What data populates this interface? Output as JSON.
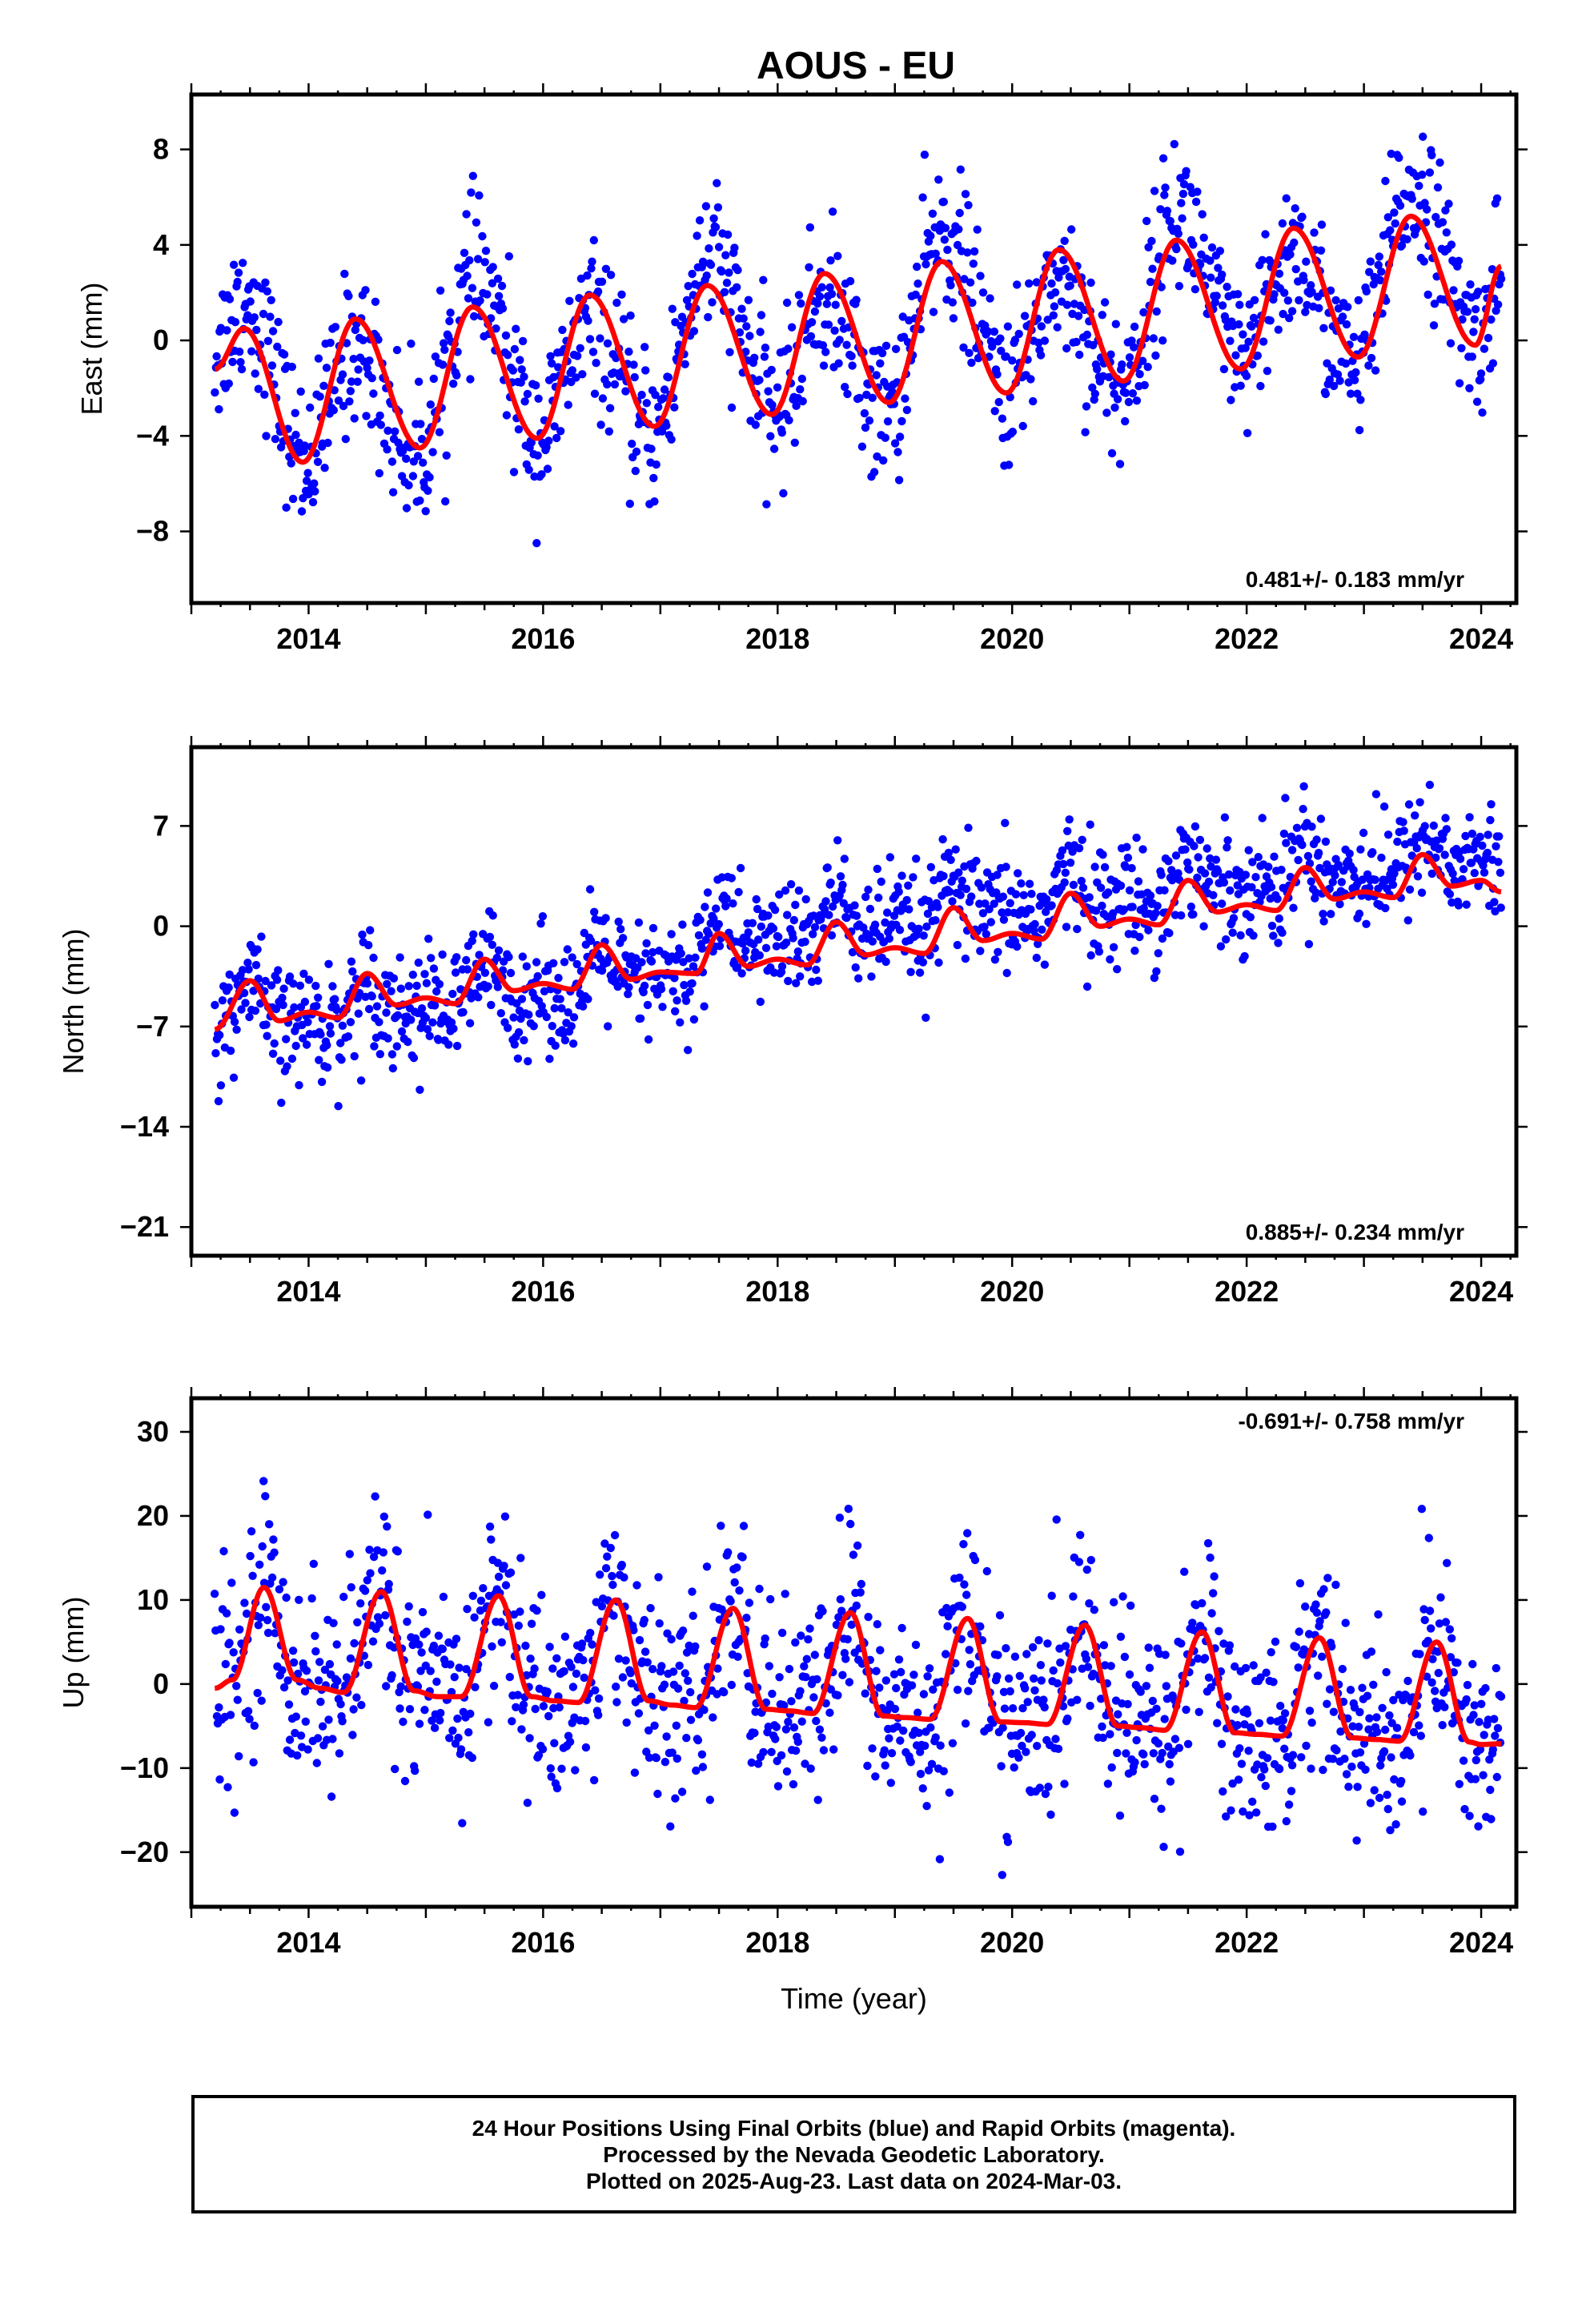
{
  "title": "AOUS - EU",
  "colors": {
    "final_orbits": "#0000ff",
    "model_fit": "#ff0000",
    "frame": "#000000"
  },
  "chart_data": [
    {
      "type": "scatter",
      "name": "east",
      "ylabel": "East (mm)",
      "xlabel": "",
      "xlim": [
        2013.0,
        2024.3
      ],
      "ylim": [
        -11,
        10.3
      ],
      "x_ticks": [
        2014,
        2016,
        2018,
        2020,
        2022,
        2024
      ],
      "y_ticks": [
        -8,
        -4,
        0,
        4,
        8
      ],
      "rate_text": "0.481+/- 0.183 mm/yr",
      "rate_position": "bottom-right",
      "data_start": 2013.2,
      "data_end": 2024.17,
      "fit_anchors": [
        [
          2013.2,
          -1.2
        ],
        [
          2013.45,
          0.5
        ],
        [
          2013.95,
          -5.1
        ],
        [
          2014.4,
          0.9
        ],
        [
          2014.95,
          -4.5
        ],
        [
          2015.4,
          1.4
        ],
        [
          2015.95,
          -4.1
        ],
        [
          2016.4,
          1.9
        ],
        [
          2016.95,
          -3.6
        ],
        [
          2017.4,
          2.3
        ],
        [
          2017.95,
          -3.1
        ],
        [
          2018.4,
          2.8
        ],
        [
          2018.95,
          -2.6
        ],
        [
          2019.4,
          3.3
        ],
        [
          2019.95,
          -2.2
        ],
        [
          2020.4,
          3.8
        ],
        [
          2020.95,
          -1.7
        ],
        [
          2021.4,
          4.2
        ],
        [
          2021.95,
          -1.2
        ],
        [
          2022.4,
          4.7
        ],
        [
          2022.95,
          -0.7
        ],
        [
          2023.4,
          5.2
        ],
        [
          2023.95,
          -0.2
        ],
        [
          2024.17,
          3.1
        ]
      ],
      "scatter_noise_sd": 1.6
    },
    {
      "type": "scatter",
      "name": "north",
      "ylabel": "North (mm)",
      "xlabel": "",
      "xlim": [
        2013.0,
        2024.3
      ],
      "ylim": [
        -23,
        12.5
      ],
      "x_ticks": [
        2014,
        2016,
        2018,
        2020,
        2022,
        2024
      ],
      "y_ticks": [
        -21,
        -14,
        -7,
        0,
        7
      ],
      "rate_text": "0.885+/- 0.234 mm/yr",
      "rate_position": "bottom-right",
      "data_start": 2013.2,
      "data_end": 2024.17,
      "fit_anchors": [
        [
          2013.2,
          -7.2
        ],
        [
          2013.5,
          -3.8
        ],
        [
          2013.75,
          -6.6
        ],
        [
          2014.0,
          -6.0
        ],
        [
          2014.25,
          -6.4
        ],
        [
          2014.5,
          -3.3
        ],
        [
          2014.75,
          -5.5
        ],
        [
          2015.0,
          -5.0
        ],
        [
          2015.25,
          -5.4
        ],
        [
          2015.5,
          -2.3
        ],
        [
          2015.75,
          -4.5
        ],
        [
          2016.0,
          -4.0
        ],
        [
          2016.25,
          -4.4
        ],
        [
          2016.5,
          -1.3
        ],
        [
          2016.75,
          -3.7
        ],
        [
          2017.0,
          -3.2
        ],
        [
          2017.3,
          -3.3
        ],
        [
          2017.5,
          -0.5
        ],
        [
          2017.75,
          -2.8
        ],
        [
          2018.0,
          -2.3
        ],
        [
          2018.25,
          -2.7
        ],
        [
          2018.5,
          0.3
        ],
        [
          2018.75,
          -2.0
        ],
        [
          2019.0,
          -1.5
        ],
        [
          2019.25,
          -1.9
        ],
        [
          2019.5,
          1.3
        ],
        [
          2019.75,
          -1.0
        ],
        [
          2020.0,
          -0.5
        ],
        [
          2020.25,
          -0.9
        ],
        [
          2020.5,
          2.3
        ],
        [
          2020.75,
          0.0
        ],
        [
          2021.0,
          0.5
        ],
        [
          2021.25,
          0.1
        ],
        [
          2021.5,
          3.2
        ],
        [
          2021.75,
          1.0
        ],
        [
          2022.0,
          1.5
        ],
        [
          2022.25,
          1.1
        ],
        [
          2022.5,
          4.1
        ],
        [
          2022.75,
          1.9
        ],
        [
          2023.0,
          2.4
        ],
        [
          2023.25,
          2.0
        ],
        [
          2023.5,
          5.0
        ],
        [
          2023.75,
          2.8
        ],
        [
          2024.0,
          3.2
        ],
        [
          2024.17,
          2.4
        ]
      ],
      "offset_fit_note_removed": true,
      "scatter_noise_sd": 2.0
    },
    {
      "type": "scatter",
      "name": "up",
      "ylabel": "Up (mm)",
      "xlabel": "Time (year)",
      "xlim": [
        2013.0,
        2024.3
      ],
      "ylim": [
        -26.5,
        34
      ],
      "x_ticks": [
        2014,
        2016,
        2018,
        2020,
        2022,
        2024
      ],
      "y_ticks": [
        -20,
        -10,
        0,
        10,
        20,
        30
      ],
      "rate_text": "-0.691+/- 0.758 mm/yr",
      "rate_position": "top-right",
      "data_start": 2013.2,
      "data_end": 2024.17,
      "fit_anchors": [
        [
          2013.2,
          -0.5
        ],
        [
          2013.35,
          0.5
        ],
        [
          2013.62,
          11.5
        ],
        [
          2013.9,
          0.5
        ],
        [
          2014.1,
          -0.5
        ],
        [
          2014.3,
          -1.0
        ],
        [
          2014.62,
          11.0
        ],
        [
          2014.9,
          -0.8
        ],
        [
          2015.1,
          -1.5
        ],
        [
          2015.3,
          -1.5
        ],
        [
          2015.62,
          10.5
        ],
        [
          2015.9,
          -1.5
        ],
        [
          2016.1,
          -2.0
        ],
        [
          2016.3,
          -2.2
        ],
        [
          2016.62,
          10.0
        ],
        [
          2016.9,
          -2.0
        ],
        [
          2017.1,
          -2.5
        ],
        [
          2017.3,
          -2.8
        ],
        [
          2017.62,
          9.0
        ],
        [
          2017.9,
          -3.0
        ],
        [
          2018.1,
          -3.2
        ],
        [
          2018.3,
          -3.5
        ],
        [
          2018.62,
          8.5
        ],
        [
          2018.9,
          -3.8
        ],
        [
          2019.1,
          -4.0
        ],
        [
          2019.3,
          -4.2
        ],
        [
          2019.62,
          7.8
        ],
        [
          2019.9,
          -4.5
        ],
        [
          2020.1,
          -4.6
        ],
        [
          2020.3,
          -4.8
        ],
        [
          2020.62,
          7.0
        ],
        [
          2020.9,
          -5.0
        ],
        [
          2021.1,
          -5.2
        ],
        [
          2021.3,
          -5.5
        ],
        [
          2021.62,
          6.2
        ],
        [
          2021.9,
          -5.8
        ],
        [
          2022.1,
          -6.0
        ],
        [
          2022.3,
          -6.2
        ],
        [
          2022.62,
          5.5
        ],
        [
          2022.9,
          -6.4
        ],
        [
          2023.1,
          -6.6
        ],
        [
          2023.3,
          -6.8
        ],
        [
          2023.62,
          5.0
        ],
        [
          2023.9,
          -6.9
        ],
        [
          2024.0,
          -7.2
        ],
        [
          2024.17,
          -7.1
        ]
      ],
      "scatter_noise_sd": 6.0
    }
  ],
  "footer": {
    "line1": "24 Hour Positions Using Final Orbits (blue) and Rapid Orbits (magenta).",
    "line2": "Processed by the Nevada Geodetic Laboratory.",
    "line3": "Plotted on 2025-Aug-23. Last data on 2024-Mar-03."
  }
}
